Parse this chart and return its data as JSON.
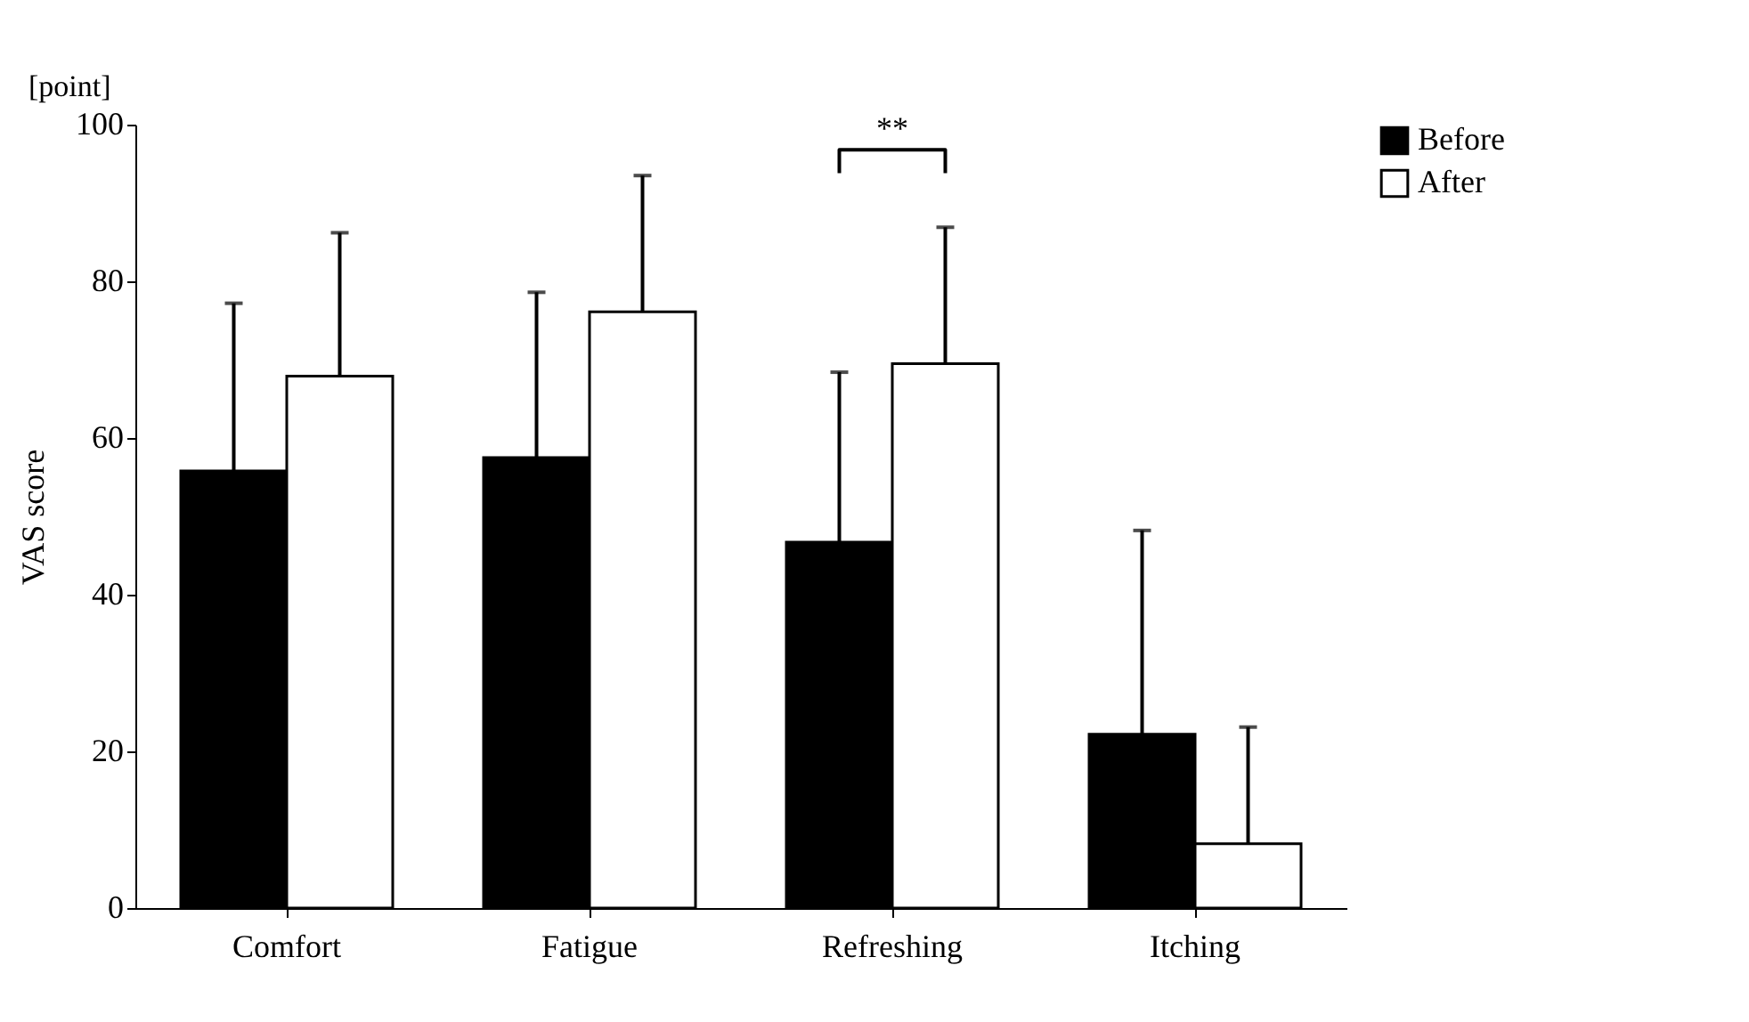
{
  "chart_data": {
    "type": "bar",
    "ylabel": "VAS score",
    "categories": [
      "Comfort",
      "Fatigue",
      "Refreshing",
      "Itching"
    ],
    "series": [
      {
        "name": "Before",
        "color": "#000000",
        "values": [
          55.8,
          57.5,
          46.7,
          22.2
        ],
        "errors": [
          [
            55.8,
            77.2
          ],
          [
            57.5,
            78.6
          ],
          [
            46.7,
            68.4
          ],
          [
            22.2,
            48.2
          ]
        ]
      },
      {
        "name": "After",
        "color": "#ffffff",
        "values": [
          67.9,
          76.1,
          69.5,
          8.2
        ],
        "errors": [
          [
            67.9,
            86.2
          ],
          [
            76.1,
            93.5
          ],
          [
            69.5,
            86.9
          ],
          [
            8.2,
            23.1
          ]
        ]
      }
    ],
    "ylim": [
      0,
      100
    ],
    "yticks": [
      0,
      20,
      40,
      60,
      80,
      100
    ],
    "grid": false,
    "legend": "right",
    "annotations": [
      "[point]",
      "**"
    ]
  }
}
